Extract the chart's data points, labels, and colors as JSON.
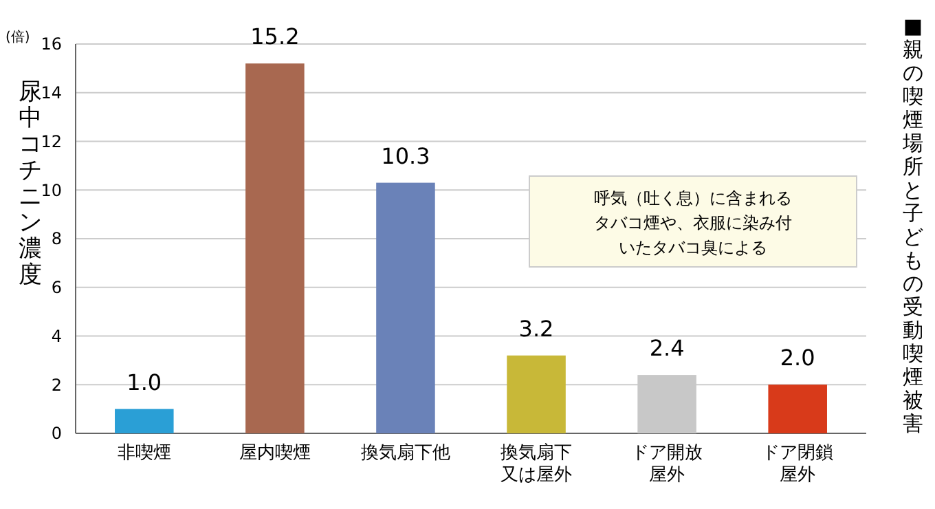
{
  "chart_data": {
    "type": "bar",
    "title": "■親の喫煙場所と子どもの受動喫煙被害",
    "ylabel": "尿中コチニン濃度",
    "categories": [
      "非喫煙",
      "屋内喫煙",
      "換気扇下他",
      "換気扇下又は屋外",
      "ドア開放屋外",
      "ドア閉鎖屋外"
    ],
    "values": [
      1.0,
      15.2,
      10.3,
      3.2,
      2.4,
      2.0
    ],
    "value_labels": [
      "1.0",
      "15.2",
      "10.3",
      "3.2",
      "2.4",
      "2.0"
    ],
    "colors": [
      "#2a9fd6",
      "#a86850",
      "#6a82b8",
      "#c8b838",
      "#c8c8c8",
      "#d83a1a"
    ],
    "ylim": [
      0,
      16
    ],
    "yticks": [
      0,
      2,
      4,
      6,
      8,
      10,
      12,
      14,
      16
    ],
    "grid": "y",
    "annotations": [
      "(倍)",
      "呼気（吐く息）に含まれるタバコ煙や、衣服に染み付いたタバコ臭による"
    ]
  }
}
